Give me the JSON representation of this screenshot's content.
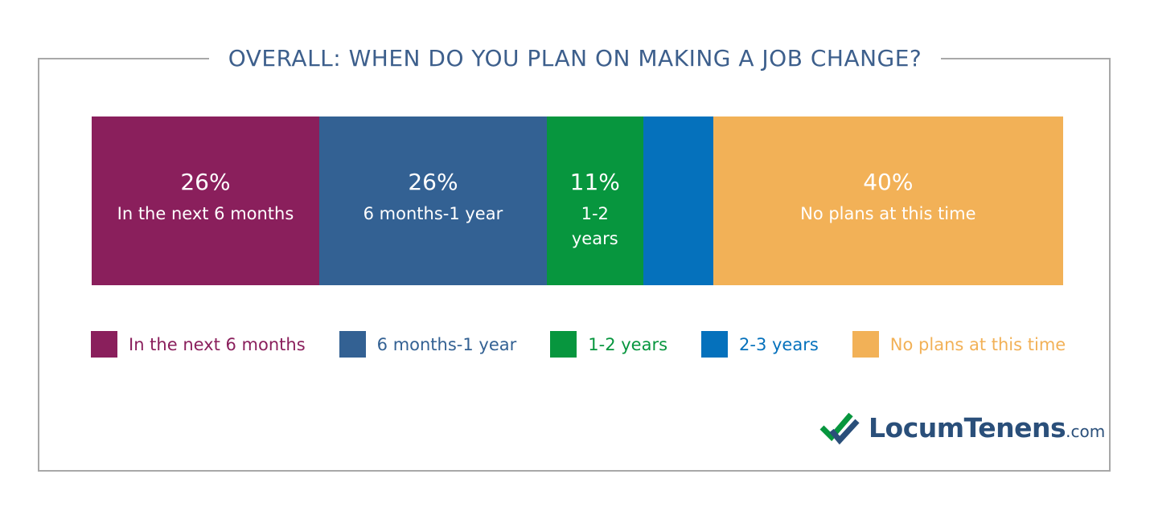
{
  "chart_data": {
    "type": "bar",
    "orientation": "horizontal",
    "stacked": true,
    "title": "OVERALL: WHEN DO YOU PLAN ON MAKING A JOB CHANGE?",
    "series": [
      {
        "name": "In the next 6 months",
        "color": "#8a1f5c",
        "values": [
          26
        ],
        "value_labels": [
          "26%"
        ]
      },
      {
        "name": "6 months-1 year",
        "color": "#336193",
        "values": [
          26
        ],
        "value_labels": [
          "26%"
        ]
      },
      {
        "name": "1-2 years",
        "color": "#07963e",
        "values": [
          11
        ],
        "value_labels": [
          "11%"
        ]
      },
      {
        "name": "2-3 years",
        "color": "#0571bc",
        "values": [
          8
        ]
      },
      {
        "name": "No plans at this time",
        "color": "#f2b157",
        "values": [
          40
        ],
        "value_labels": [
          "40%"
        ]
      }
    ],
    "legend": "bottom"
  },
  "logo": {
    "name": "LocumTenens",
    "suffix": ".com"
  }
}
